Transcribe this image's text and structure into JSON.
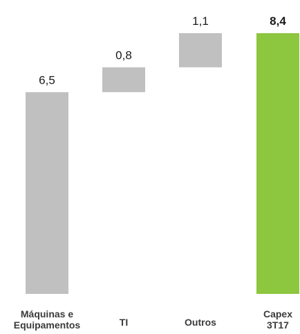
{
  "chart_data": {
    "type": "bar",
    "subtype": "waterfall",
    "categories": [
      [
        "Máquinas e",
        "Equipamentos"
      ],
      [
        "TI"
      ],
      [
        "Outros"
      ],
      [
        "Capex",
        "3T17"
      ]
    ],
    "values": [
      6.5,
      0.8,
      1.1,
      8.4
    ],
    "value_labels": [
      "6,5",
      "0,8",
      "1,1",
      "8,4"
    ],
    "bar_kinds": [
      "increment",
      "increment",
      "increment",
      "total"
    ],
    "ylim": [
      0,
      8.4
    ],
    "title": "",
    "xlabel": "",
    "ylabel": "",
    "grid": false,
    "legend": "none",
    "colors": {
      "increment": "#c0c0c0",
      "total": "#8dc63f"
    }
  }
}
